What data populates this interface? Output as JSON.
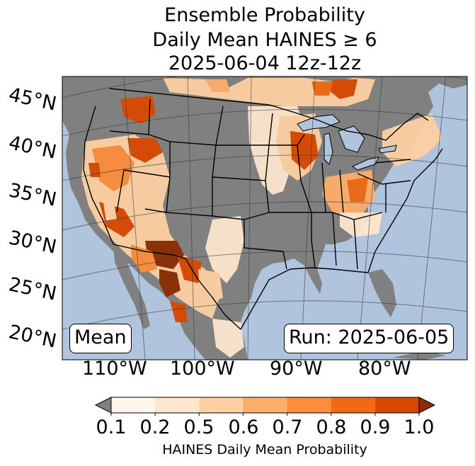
{
  "title": {
    "line1": "Ensemble Probability",
    "line2": "Daily Mean HAINES ≥ 6",
    "line3": "2025-06-04 12z-12z"
  },
  "map": {
    "region": "CONUS",
    "lat_labels": [
      "45°N",
      "40°N",
      "35°N",
      "30°N",
      "25°N",
      "20°N"
    ],
    "lon_labels": [
      "110°W",
      "100°W",
      "90°W",
      "80°W"
    ],
    "mean_label": "Mean",
    "run_label": "Run: 2025-06-05",
    "colors": {
      "ocean": "#b0c4de",
      "land_no_signal": "#808080",
      "borders": "#000000"
    }
  },
  "colorbar": {
    "ticks": [
      "0.1",
      "0.2",
      "0.5",
      "0.6",
      "0.7",
      "0.8",
      "0.9",
      "1.0"
    ],
    "colors": [
      "#fff5eb",
      "#fee6ce",
      "#fdd0a2",
      "#fdae6b",
      "#fd8d3c",
      "#f16913",
      "#d94801",
      "#8c2d04"
    ],
    "under_color": "#808080",
    "label": "HAINES Daily Mean Probability"
  }
}
